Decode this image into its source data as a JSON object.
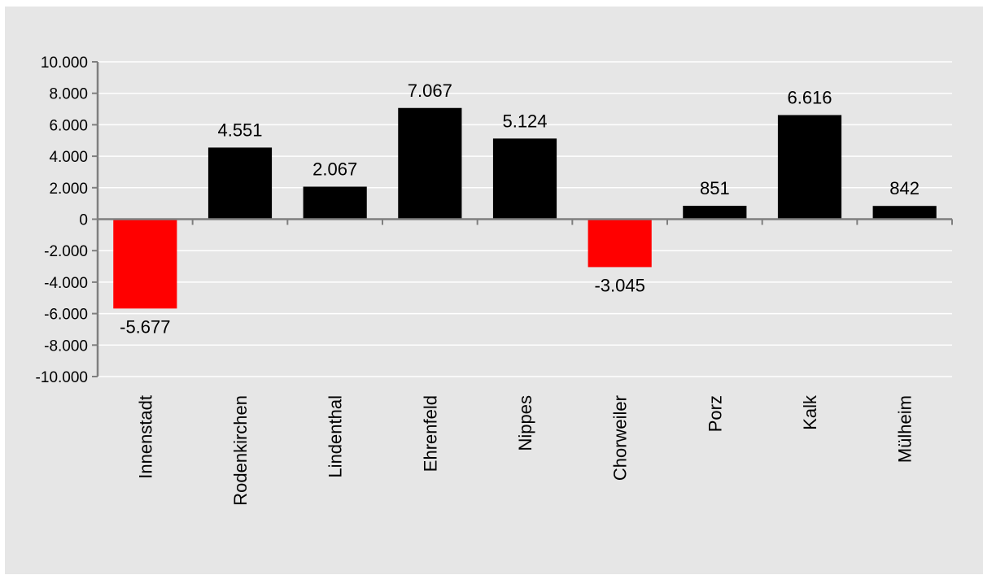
{
  "chart_data": {
    "type": "bar",
    "categories": [
      "Innenstadt",
      "Rodenkirchen",
      "Lindenthal",
      "Ehrenfeld",
      "Nippes",
      "Chorweiler",
      "Porz",
      "Kalk",
      "Mülheim"
    ],
    "values": [
      -5677,
      4551,
      2067,
      7067,
      5124,
      -3045,
      851,
      6616,
      842
    ],
    "data_labels": [
      "-5.677",
      "4.551",
      "2.067",
      "7.067",
      "5.124",
      "-3.045",
      "851",
      "6.616",
      "842"
    ],
    "y_ticks": [
      10000,
      8000,
      6000,
      4000,
      2000,
      0,
      -2000,
      -4000,
      -6000,
      -8000,
      -10000
    ],
    "y_tick_labels": [
      "10.000",
      "8.000",
      "6.000",
      "4.000",
      "2.000",
      "0",
      "-2.000",
      "-4.000",
      "-6.000",
      "-8.000",
      "-10.000"
    ],
    "ylim": [
      -10000,
      10000
    ],
    "title": "",
    "xlabel": "",
    "ylabel": "",
    "grid": true,
    "legend": "none",
    "colors": {
      "positive": "#000000",
      "negative": "#ff0000",
      "background": "#e6e6e6",
      "gridline": "#ffffff",
      "axis": "#7f7f7f"
    }
  }
}
